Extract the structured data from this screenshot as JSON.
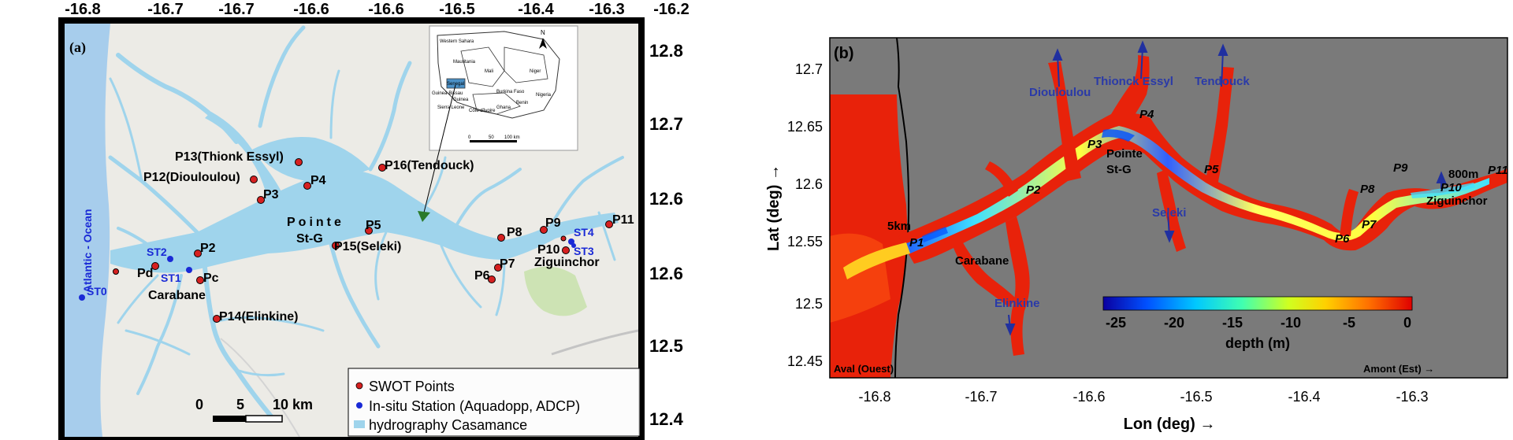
{
  "left_map": {
    "panel_label": "(a)",
    "ocean_label": "Atlantic - Ocean",
    "top_ticks": [
      "-16.8",
      "-16.7",
      "-16.7",
      "-16.6",
      "-16.6",
      "-16.5",
      "-16.4",
      "-16.3",
      "-16.2"
    ],
    "right_ticks": [
      "12.8",
      "12.7",
      "12.6",
      "12.6",
      "12.5",
      "12.4"
    ],
    "points": [
      {
        "label": "P13(Thionk Essyl)",
        "color": "#d62020"
      },
      {
        "label": "P12(Diouloulou)",
        "color": "#d62020"
      },
      {
        "label": "P16(Tendouck)",
        "color": "#d62020"
      },
      {
        "label": "P4",
        "color": "#d62020"
      },
      {
        "label": "P3",
        "color": "#d62020"
      },
      {
        "label": "P5",
        "color": "#d62020"
      },
      {
        "label": "P2",
        "color": "#d62020"
      },
      {
        "label": "P15(Seleki)",
        "color": "#d62020"
      },
      {
        "label": "P8",
        "color": "#d62020"
      },
      {
        "label": "P9",
        "color": "#d62020"
      },
      {
        "label": "P11",
        "color": "#d62020"
      },
      {
        "label": "P10",
        "color": "#d62020"
      },
      {
        "label": "P7",
        "color": "#d62020"
      },
      {
        "label": "P6",
        "color": "#d62020"
      },
      {
        "label": "Pd",
        "color": "#d62020"
      },
      {
        "label": "Pc",
        "color": "#d62020"
      },
      {
        "label": "P14(Elinkine)",
        "color": "#d62020"
      }
    ],
    "stations": [
      {
        "label": "ST2",
        "color": "#1a2ad6"
      },
      {
        "label": "ST1",
        "color": "#1a2ad6"
      },
      {
        "label": "ST0",
        "color": "#1a2ad6"
      },
      {
        "label": "ST4",
        "color": "#1a2ad6"
      },
      {
        "label": "ST3",
        "color": "#1a2ad6"
      }
    ],
    "place_labels": [
      "Pointe",
      "St-G",
      "Carabane",
      "Ziguinchor"
    ],
    "scale": {
      "zero": "0",
      "mid": "5",
      "end": "10 km"
    },
    "legend": [
      {
        "label": "SWOT Points",
        "color": "#d62020"
      },
      {
        "label": "In-situ Station (Aquadopp, ADCP)",
        "color": "#1a2ad6"
      },
      {
        "label": "hydrography Casamance",
        "color": "#9fd4ec"
      }
    ],
    "inset": {
      "countries": [
        "Western Sahara",
        "Mauritania",
        "Mali",
        "Niger",
        "Senegal",
        "Guinea-Bissau",
        "Guinea",
        "Burkina Faso",
        "Sierra Leone",
        "Côte d'Ivoire",
        "Ghana",
        "Benin",
        "Nigeria"
      ],
      "north": "N",
      "scale": [
        "0",
        "50",
        "100 km"
      ]
    }
  },
  "right_map": {
    "panel_label": "(b)",
    "x_label": "Lon (deg) →",
    "y_label": "Lat (deg) →",
    "x_ticks": [
      "-16.8",
      "-16.7",
      "-16.6",
      "-16.5",
      "-16.4",
      "-16.3"
    ],
    "y_ticks": [
      "12.7",
      "12.65",
      "12.6",
      "12.55",
      "12.5",
      "12.45"
    ],
    "tributaries": [
      "Diouloulou",
      "Thionck Essyl",
      "Tendouck",
      "Seleki",
      "Elinkine"
    ],
    "points": [
      "P1",
      "P2",
      "P3",
      "P4",
      "P5",
      "P6",
      "P7",
      "P8",
      "P9",
      "P10",
      "P11"
    ],
    "places": [
      "Pointe",
      "St-G",
      "Carabane",
      "Ziguinchor"
    ],
    "notes": {
      "five_km": "5km",
      "eight_hundred": "800m",
      "aval": "Aval (Ouest)",
      "amont": "Amont (Est) →"
    },
    "colorbar": {
      "title": "depth (m)",
      "ticks": [
        "-25",
        "-20",
        "-15",
        "-10",
        "-5",
        "0"
      ],
      "colors": [
        "#0a00a0",
        "#0050ff",
        "#00c8ff",
        "#40ffb0",
        "#d0ff20",
        "#ffd000",
        "#ff7000",
        "#e00000"
      ]
    }
  }
}
